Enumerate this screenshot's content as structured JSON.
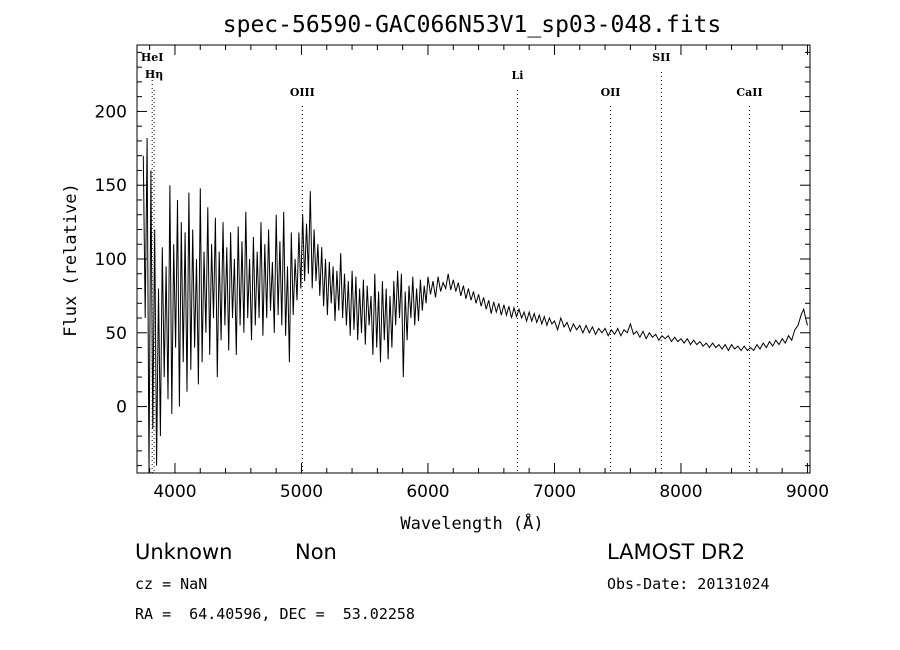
{
  "chart_data": {
    "type": "line",
    "title": "spec-56590-GAC066N53V1_sp03-048.fits",
    "xlabel": "Wavelength (Å)",
    "ylabel": "Flux (relative)",
    "xlim": [
      3700,
      9020
    ],
    "ylim": [
      -45,
      245
    ],
    "xticks": [
      4000,
      5000,
      6000,
      7000,
      8000,
      9000
    ],
    "yticks": [
      0,
      50,
      100,
      150,
      200
    ],
    "grid": false,
    "series": [
      {
        "values_description_note": "",
        "points": [
          [
            3750,
            170
          ],
          [
            3765,
            60
          ],
          [
            3780,
            182
          ],
          [
            3795,
            -45
          ],
          [
            3810,
            160
          ],
          [
            3825,
            -15
          ],
          [
            3840,
            120
          ],
          [
            3855,
            -40
          ],
          [
            3870,
            80
          ],
          [
            3885,
            -20
          ],
          [
            3900,
            108
          ],
          [
            3915,
            20
          ],
          [
            3930,
            95
          ],
          [
            3945,
            5
          ],
          [
            3960,
            150
          ],
          [
            3975,
            -5
          ],
          [
            3990,
            110
          ],
          [
            4005,
            40
          ],
          [
            4020,
            140
          ],
          [
            4035,
            0
          ],
          [
            4050,
            125
          ],
          [
            4065,
            30
          ],
          [
            4080,
            118
          ],
          [
            4095,
            10
          ],
          [
            4110,
            145
          ],
          [
            4125,
            25
          ],
          [
            4140,
            120
          ],
          [
            4155,
            40
          ],
          [
            4170,
            100
          ],
          [
            4185,
            15
          ],
          [
            4200,
            148
          ],
          [
            4215,
            30
          ],
          [
            4230,
            105
          ],
          [
            4245,
            50
          ],
          [
            4260,
            135
          ],
          [
            4275,
            35
          ],
          [
            4290,
            110
          ],
          [
            4305,
            60
          ],
          [
            4320,
            128
          ],
          [
            4335,
            20
          ],
          [
            4350,
            105
          ],
          [
            4365,
            45
          ],
          [
            4380,
            125
          ],
          [
            4395,
            55
          ],
          [
            4410,
            108
          ],
          [
            4425,
            38
          ],
          [
            4440,
            118
          ],
          [
            4455,
            60
          ],
          [
            4470,
            100
          ],
          [
            4485,
            35
          ],
          [
            4500,
            122
          ],
          [
            4515,
            55
          ],
          [
            4530,
            112
          ],
          [
            4545,
            50
          ],
          [
            4560,
            132
          ],
          [
            4575,
            60
          ],
          [
            4590,
            100
          ],
          [
            4605,
            45
          ],
          [
            4620,
            115
          ],
          [
            4635,
            55
          ],
          [
            4650,
            105
          ],
          [
            4665,
            60
          ],
          [
            4680,
            125
          ],
          [
            4695,
            48
          ],
          [
            4710,
            110
          ],
          [
            4725,
            60
          ],
          [
            4740,
            120
          ],
          [
            4755,
            65
          ],
          [
            4770,
            98
          ],
          [
            4785,
            50
          ],
          [
            4800,
            130
          ],
          [
            4815,
            62
          ],
          [
            4830,
            112
          ],
          [
            4845,
            55
          ],
          [
            4860,
            132
          ],
          [
            4875,
            48
          ],
          [
            4890,
            95
          ],
          [
            4905,
            30
          ],
          [
            4920,
            118
          ],
          [
            4935,
            62
          ],
          [
            4950,
            100
          ],
          [
            4965,
            72
          ],
          [
            4980,
            118
          ],
          [
            4995,
            80
          ],
          [
            5010,
            130
          ],
          [
            5025,
            85
          ],
          [
            5040,
            124
          ],
          [
            5055,
            90
          ],
          [
            5070,
            146
          ],
          [
            5085,
            80
          ],
          [
            5100,
            120
          ],
          [
            5115,
            85
          ],
          [
            5130,
            110
          ],
          [
            5145,
            75
          ],
          [
            5160,
            108
          ],
          [
            5175,
            68
          ],
          [
            5190,
            100
          ],
          [
            5205,
            62
          ],
          [
            5220,
            98
          ],
          [
            5235,
            70
          ],
          [
            5250,
            95
          ],
          [
            5265,
            58
          ],
          [
            5280,
            92
          ],
          [
            5295,
            65
          ],
          [
            5310,
            104
          ],
          [
            5325,
            60
          ],
          [
            5340,
            90
          ],
          [
            5355,
            55
          ],
          [
            5370,
            85
          ],
          [
            5385,
            48
          ],
          [
            5400,
            92
          ],
          [
            5415,
            52
          ],
          [
            5430,
            88
          ],
          [
            5445,
            45
          ],
          [
            5460,
            80
          ],
          [
            5475,
            50
          ],
          [
            5490,
            86
          ],
          [
            5505,
            42
          ],
          [
            5520,
            82
          ],
          [
            5535,
            55
          ],
          [
            5550,
            75
          ],
          [
            5565,
            35
          ],
          [
            5580,
            90
          ],
          [
            5595,
            40
          ],
          [
            5610,
            78
          ],
          [
            5625,
            30
          ],
          [
            5640,
            85
          ],
          [
            5655,
            45
          ],
          [
            5670,
            80
          ],
          [
            5685,
            32
          ],
          [
            5700,
            75
          ],
          [
            5715,
            40
          ],
          [
            5730,
            85
          ],
          [
            5745,
            55
          ],
          [
            5760,
            92
          ],
          [
            5775,
            60
          ],
          [
            5790,
            90
          ],
          [
            5805,
            20
          ],
          [
            5820,
            78
          ],
          [
            5835,
            45
          ],
          [
            5850,
            82
          ],
          [
            5865,
            60
          ],
          [
            5880,
            88
          ],
          [
            5895,
            55
          ],
          [
            5910,
            80
          ],
          [
            5925,
            58
          ],
          [
            5940,
            86
          ],
          [
            5955,
            65
          ],
          [
            5970,
            82
          ],
          [
            5985,
            70
          ],
          [
            6000,
            88
          ],
          [
            6020,
            76
          ],
          [
            6040,
            85
          ],
          [
            6060,
            74
          ],
          [
            6080,
            88
          ],
          [
            6100,
            78
          ],
          [
            6120,
            84
          ],
          [
            6140,
            80
          ],
          [
            6160,
            90
          ],
          [
            6180,
            79
          ],
          [
            6200,
            86
          ],
          [
            6220,
            78
          ],
          [
            6240,
            84
          ],
          [
            6260,
            75
          ],
          [
            6280,
            82
          ],
          [
            6300,
            73
          ],
          [
            6320,
            80
          ],
          [
            6340,
            72
          ],
          [
            6360,
            78
          ],
          [
            6380,
            70
          ],
          [
            6400,
            76
          ],
          [
            6420,
            68
          ],
          [
            6440,
            74
          ],
          [
            6460,
            66
          ],
          [
            6480,
            72
          ],
          [
            6500,
            63
          ],
          [
            6520,
            71
          ],
          [
            6540,
            64
          ],
          [
            6560,
            70
          ],
          [
            6580,
            62
          ],
          [
            6600,
            69
          ],
          [
            6620,
            62
          ],
          [
            6640,
            68
          ],
          [
            6660,
            60
          ],
          [
            6680,
            67
          ],
          [
            6700,
            61
          ],
          [
            6720,
            66
          ],
          [
            6740,
            60
          ],
          [
            6760,
            64
          ],
          [
            6780,
            58
          ],
          [
            6800,
            64
          ],
          [
            6820,
            58
          ],
          [
            6840,
            63
          ],
          [
            6860,
            57
          ],
          [
            6880,
            62
          ],
          [
            6900,
            56
          ],
          [
            6920,
            61
          ],
          [
            6940,
            55
          ],
          [
            6960,
            60
          ],
          [
            6980,
            56
          ],
          [
            7000,
            58
          ],
          [
            7025,
            52
          ],
          [
            7050,
            60
          ],
          [
            7075,
            54
          ],
          [
            7100,
            57
          ],
          [
            7125,
            51
          ],
          [
            7150,
            56
          ],
          [
            7175,
            52
          ],
          [
            7200,
            55
          ],
          [
            7225,
            50
          ],
          [
            7250,
            55
          ],
          [
            7275,
            50
          ],
          [
            7300,
            54
          ],
          [
            7325,
            49
          ],
          [
            7350,
            53
          ],
          [
            7375,
            50
          ],
          [
            7400,
            53
          ],
          [
            7425,
            48
          ],
          [
            7450,
            52
          ],
          [
            7475,
            49
          ],
          [
            7500,
            53
          ],
          [
            7525,
            48
          ],
          [
            7550,
            52
          ],
          [
            7575,
            50
          ],
          [
            7600,
            56
          ],
          [
            7625,
            49
          ],
          [
            7650,
            51
          ],
          [
            7675,
            47
          ],
          [
            7700,
            51
          ],
          [
            7725,
            46
          ],
          [
            7750,
            50
          ],
          [
            7775,
            47
          ],
          [
            7800,
            49
          ],
          [
            7825,
            45
          ],
          [
            7850,
            48
          ],
          [
            7875,
            46
          ],
          [
            7900,
            48
          ],
          [
            7925,
            44
          ],
          [
            7950,
            47
          ],
          [
            7975,
            44
          ],
          [
            8000,
            46
          ],
          [
            8025,
            43
          ],
          [
            8050,
            46
          ],
          [
            8075,
            42
          ],
          [
            8100,
            45
          ],
          [
            8125,
            42
          ],
          [
            8150,
            44
          ],
          [
            8175,
            41
          ],
          [
            8200,
            43
          ],
          [
            8225,
            40
          ],
          [
            8250,
            43
          ],
          [
            8275,
            40
          ],
          [
            8300,
            42
          ],
          [
            8325,
            39
          ],
          [
            8350,
            42
          ],
          [
            8375,
            38
          ],
          [
            8400,
            42
          ],
          [
            8425,
            39
          ],
          [
            8450,
            41
          ],
          [
            8475,
            38
          ],
          [
            8500,
            41
          ],
          [
            8525,
            38
          ],
          [
            8550,
            40
          ],
          [
            8575,
            38
          ],
          [
            8600,
            42
          ],
          [
            8625,
            39
          ],
          [
            8650,
            43
          ],
          [
            8675,
            40
          ],
          [
            8700,
            44
          ],
          [
            8725,
            41
          ],
          [
            8750,
            45
          ],
          [
            8775,
            42
          ],
          [
            8800,
            46
          ],
          [
            8825,
            43
          ],
          [
            8850,
            48
          ],
          [
            8875,
            45
          ],
          [
            8900,
            52
          ],
          [
            8925,
            55
          ],
          [
            8950,
            62
          ],
          [
            8970,
            66
          ],
          [
            8985,
            60
          ],
          [
            9000,
            55
          ]
        ]
      }
    ],
    "annotations": [
      {
        "label": "HeI",
        "x": 3820
      },
      {
        "label": "Hη",
        "x": 3835
      },
      {
        "label": "OIII",
        "x": 5007
      },
      {
        "label": "Li",
        "x": 6708
      },
      {
        "label": "OII",
        "x": 7443
      },
      {
        "label": "SII",
        "x": 7845
      },
      {
        "label": "CaII",
        "x": 8542
      }
    ]
  },
  "info": {
    "class": "Unknown",
    "subclass": "Non",
    "survey": "LAMOST DR2",
    "cz": "cz = NaN",
    "obsdate": "Obs-Date: 20131024",
    "radec": "RA =  64.40596, DEC =  53.02258"
  }
}
